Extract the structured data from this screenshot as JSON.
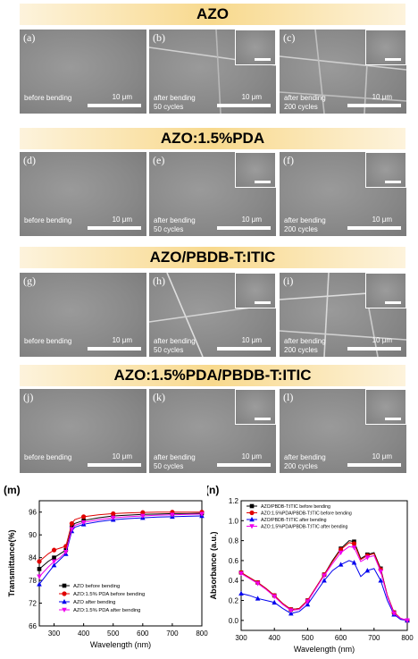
{
  "rows": [
    {
      "title": "AZO",
      "panels": [
        {
          "label": "(a)",
          "caption": "before bending",
          "scale": "10 μm",
          "inset": false
        },
        {
          "label": "(b)",
          "caption": "after bending\n50 cycles",
          "scale": "10 μm",
          "inset": true
        },
        {
          "label": "(c)",
          "caption": "after bending\n200 cycles",
          "scale": "10 μm",
          "inset": true
        }
      ]
    },
    {
      "title": "AZO:1.5%PDA",
      "panels": [
        {
          "label": "(d)",
          "caption": "before bending",
          "scale": "10 μm",
          "inset": false
        },
        {
          "label": "(e)",
          "caption": "after bending\n50 cycles",
          "scale": "10 μm",
          "inset": true
        },
        {
          "label": "(f)",
          "caption": "after bending\n200 cycles",
          "scale": "10 μm",
          "inset": true
        }
      ]
    },
    {
      "title": "AZO/PBDB-T:ITIC",
      "panels": [
        {
          "label": "(g)",
          "caption": "before bending",
          "scale": "10 μm",
          "inset": false
        },
        {
          "label": "(h)",
          "caption": "after bending\n50 cycles",
          "scale": "10 μm",
          "inset": true
        },
        {
          "label": "(i)",
          "caption": "after bending\n200 cycles",
          "scale": "10 μm",
          "inset": true
        }
      ]
    },
    {
      "title": "AZO:1.5%PDA/PBDB-T:ITIC",
      "panels": [
        {
          "label": "(j)",
          "caption": "before bending",
          "scale": "10 μm",
          "inset": false
        },
        {
          "label": "(k)",
          "caption": "after bending\n50 cycles",
          "scale": "10 μm",
          "inset": true
        },
        {
          "label": "(l)",
          "caption": "after bending\n200 cycles",
          "scale": "10 μm",
          "inset": true
        }
      ]
    }
  ],
  "chart_data": [
    {
      "panel_label": "(m)",
      "type": "line",
      "xlabel": "Wavelength (nm)",
      "ylabel": "Transmittance(%)",
      "xlim": [
        250,
        800
      ],
      "ylim": [
        66,
        99
      ],
      "xticks": [
        300,
        400,
        500,
        600,
        700,
        800
      ],
      "yticks": [
        66,
        72,
        78,
        84,
        90,
        96
      ],
      "legend_position": "bottom-center",
      "x": [
        250,
        280,
        300,
        320,
        340,
        350,
        360,
        370,
        400,
        450,
        500,
        550,
        600,
        650,
        700,
        750,
        800
      ],
      "series": [
        {
          "name": "AZO before bending",
          "color": "#000000",
          "marker": "square",
          "values": [
            81,
            83,
            84,
            85,
            86,
            89,
            92,
            93,
            93.8,
            94.5,
            95,
            95.2,
            95.4,
            95.5,
            95.6,
            95.6,
            95.7
          ]
        },
        {
          "name": "AZO:1.5% PDA before bending",
          "color": "#e00000",
          "marker": "circle",
          "values": [
            83,
            85,
            86,
            86.5,
            87,
            90,
            93,
            94,
            94.8,
            95.3,
            95.6,
            95.8,
            95.9,
            96,
            96,
            96,
            96
          ]
        },
        {
          "name": "AZO after bending",
          "color": "#0000ee",
          "marker": "triangle",
          "values": [
            77,
            80,
            82,
            83.5,
            85,
            88,
            91,
            92,
            92.8,
            93.5,
            94,
            94.3,
            94.5,
            94.7,
            94.8,
            94.9,
            95
          ]
        },
        {
          "name": "AZO:1.5% PDA after bending",
          "color": "#ee00ee",
          "marker": "triangle-down",
          "values": [
            79,
            81.5,
            83,
            84,
            85.5,
            88.5,
            91.5,
            92.5,
            93.3,
            94,
            94.5,
            94.8,
            95,
            95.2,
            95.3,
            95.4,
            95.5
          ]
        }
      ]
    },
    {
      "panel_label": "(n)",
      "type": "line",
      "xlabel": "Wavelength (nm)",
      "ylabel": "Absorbance (a.u.)",
      "xlim": [
        300,
        800
      ],
      "ylim": [
        -0.1,
        1.2
      ],
      "xticks": [
        300,
        400,
        500,
        600,
        700,
        800
      ],
      "yticks": [
        0.0,
        0.2,
        0.4,
        0.6,
        0.8,
        1.0,
        1.2
      ],
      "legend_position": "top-left",
      "x": [
        300,
        325,
        350,
        375,
        400,
        425,
        450,
        475,
        500,
        525,
        550,
        575,
        600,
        625,
        640,
        660,
        680,
        700,
        720,
        740,
        760,
        780,
        800
      ],
      "series": [
        {
          "name": "AZO/PBDB-T:ITIC before bending",
          "color": "#000000",
          "marker": "square",
          "values": [
            0.48,
            0.43,
            0.38,
            0.32,
            0.25,
            0.17,
            0.11,
            0.12,
            0.2,
            0.33,
            0.46,
            0.6,
            0.72,
            0.8,
            0.79,
            0.62,
            0.66,
            0.68,
            0.52,
            0.25,
            0.08,
            0.02,
            0.0
          ]
        },
        {
          "name": "AZO:1.5%PDA/PBDB-T:ITIC before bending",
          "color": "#e00000",
          "marker": "circle",
          "values": [
            0.48,
            0.43,
            0.38,
            0.32,
            0.25,
            0.17,
            0.11,
            0.12,
            0.2,
            0.33,
            0.46,
            0.59,
            0.71,
            0.78,
            0.77,
            0.61,
            0.65,
            0.67,
            0.51,
            0.25,
            0.08,
            0.02,
            0.0
          ]
        },
        {
          "name": "AZO/PBDB-T:ITIC after bending",
          "color": "#0000ee",
          "marker": "triangle",
          "values": [
            0.27,
            0.25,
            0.22,
            0.2,
            0.18,
            0.12,
            0.07,
            0.09,
            0.16,
            0.28,
            0.4,
            0.5,
            0.56,
            0.6,
            0.58,
            0.44,
            0.5,
            0.52,
            0.4,
            0.2,
            0.06,
            0.01,
            0.0
          ]
        },
        {
          "name": "AZO:1.5%PDA/PBDB-T:ITIC after bending",
          "color": "#ee00ee",
          "marker": "triangle-down",
          "values": [
            0.47,
            0.42,
            0.37,
            0.31,
            0.24,
            0.16,
            0.1,
            0.11,
            0.19,
            0.32,
            0.45,
            0.57,
            0.68,
            0.74,
            0.73,
            0.59,
            0.63,
            0.65,
            0.49,
            0.24,
            0.07,
            0.02,
            0.0
          ]
        }
      ]
    }
  ]
}
